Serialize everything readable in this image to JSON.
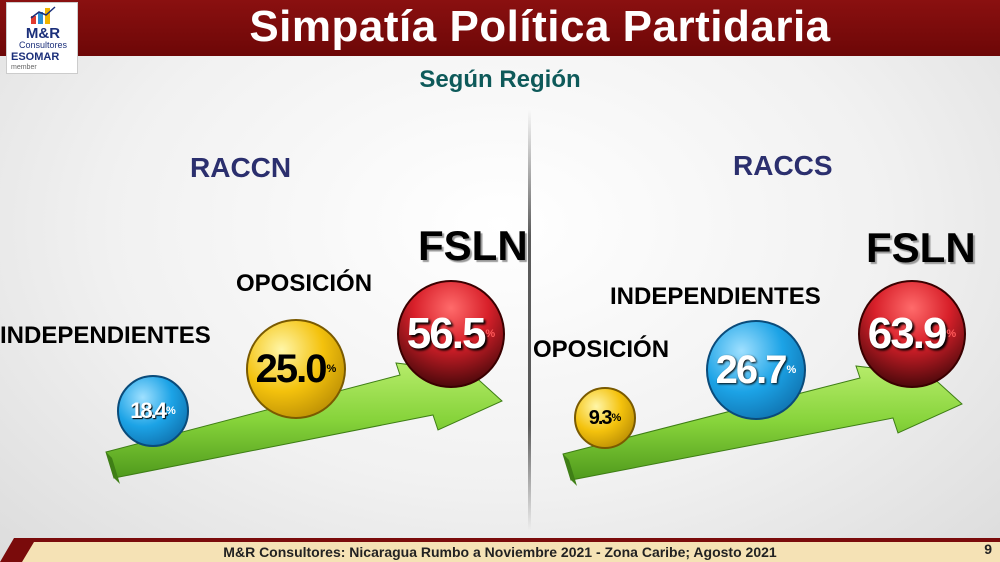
{
  "header": {
    "title": "Simpatía Política Partidaria",
    "subtitle": "Según Región",
    "logo": {
      "brand": "M&R",
      "sub": "Consultores",
      "esomar": "ESOMAR",
      "member": "member"
    }
  },
  "colors": {
    "header_bg": "#7a0b0b",
    "arrow": "#86d33a",
    "fsln": "#d8202a",
    "independientes": "#1ca3e6",
    "oposicion": "#f4c20d"
  },
  "chart_data": [
    {
      "type": "bar",
      "title": "RACCN",
      "categories": [
        "INDEPENDIENTES",
        "OPOSICIÓN",
        "FSLN"
      ],
      "values": [
        18.4,
        25.0,
        56.5
      ],
      "labels": [
        "18.4",
        "25.0",
        "56.5"
      ],
      "unit": "%"
    },
    {
      "type": "bar",
      "title": "RACCS",
      "categories": [
        "OPOSICIÓN",
        "INDEPENDIENTES",
        "FSLN"
      ],
      "values": [
        9.3,
        26.7,
        63.9
      ],
      "labels": [
        "9.3",
        "26.7",
        "63.9"
      ],
      "unit": "%"
    }
  ],
  "footer": {
    "text": "M&R Consultores: Nicaragua Rumbo a Noviembre 2021 - Zona Caribe; Agosto 2021",
    "page": "9"
  }
}
